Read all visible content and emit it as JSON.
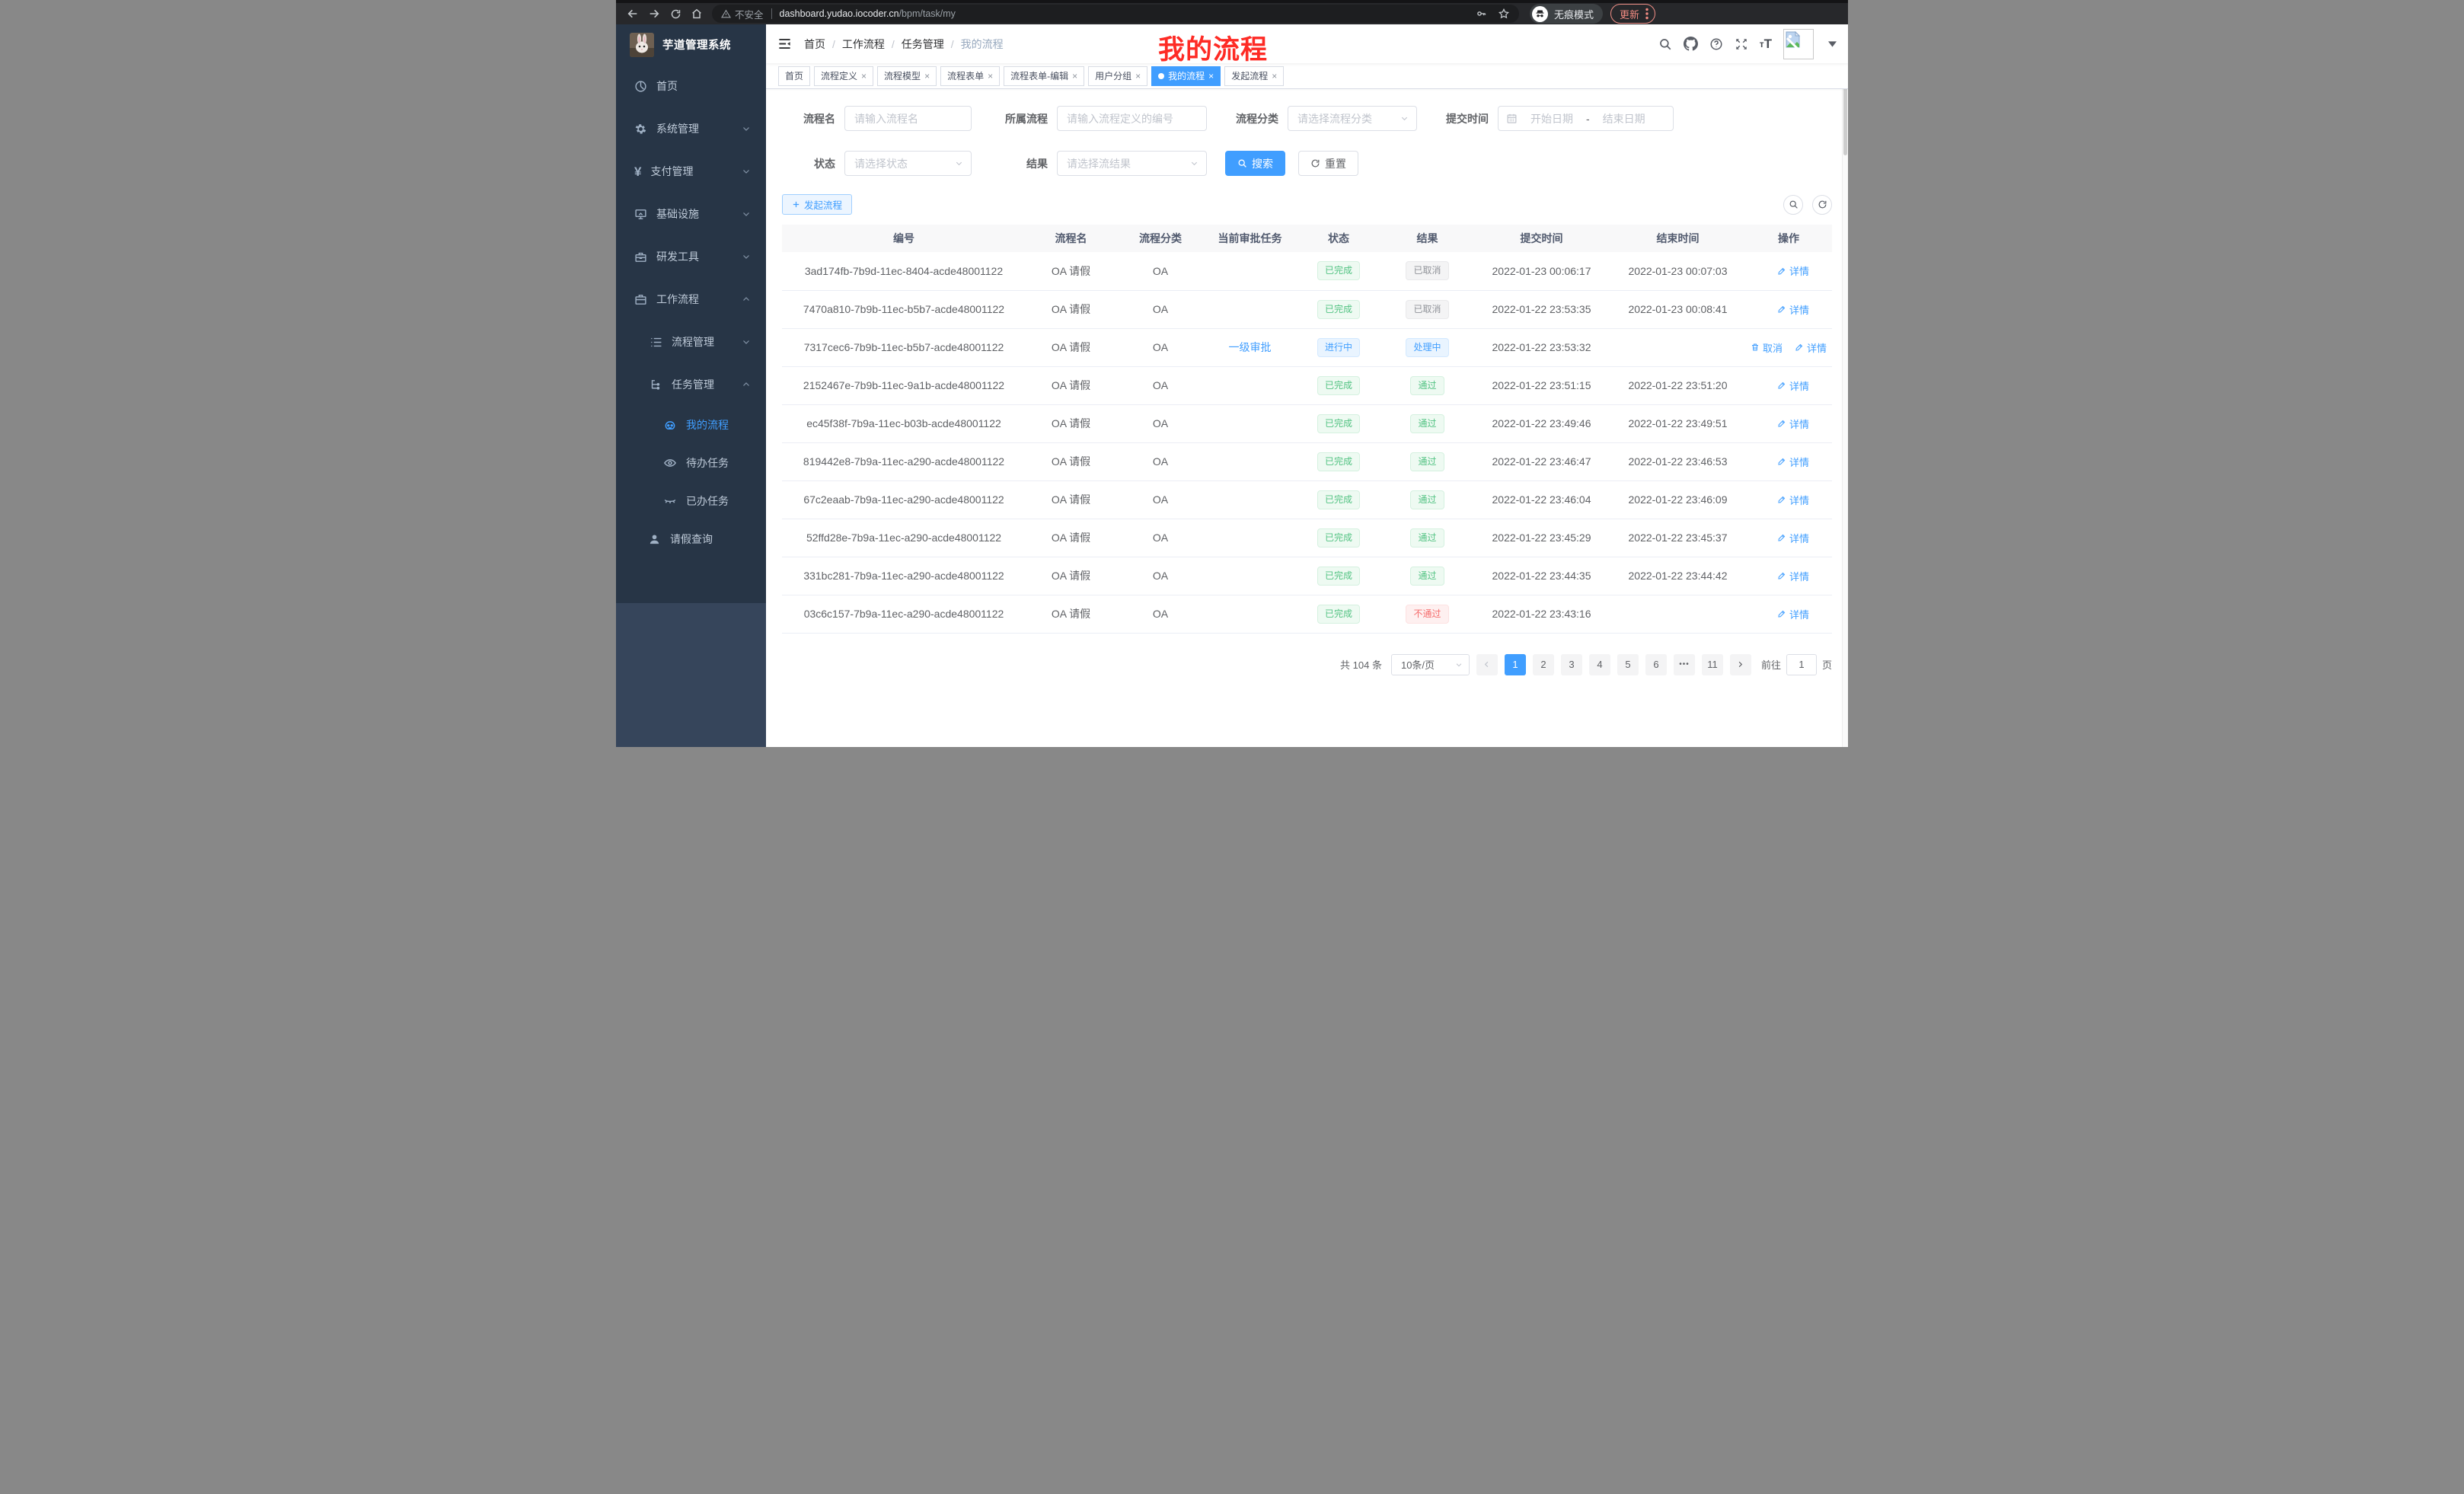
{
  "browser": {
    "security_label": "不安全",
    "url_host": "dashboard.yudao.iocoder.cn",
    "url_path": "/bpm/task/my",
    "incognito_label": "无痕模式",
    "update_label": "更新"
  },
  "sidebar": {
    "title": "芋道管理系统",
    "items": [
      {
        "label": "首页"
      },
      {
        "label": "系统管理"
      },
      {
        "label": "支付管理"
      },
      {
        "label": "基础设施"
      },
      {
        "label": "研发工具"
      },
      {
        "label": "工作流程"
      },
      {
        "label": "流程管理"
      },
      {
        "label": "任务管理"
      },
      {
        "label": "我的流程"
      },
      {
        "label": "待办任务"
      },
      {
        "label": "已办任务"
      },
      {
        "label": "请假查询"
      }
    ]
  },
  "header": {
    "breadcrumb": [
      "首页",
      "工作流程",
      "任务管理",
      "我的流程"
    ],
    "separator": "/"
  },
  "annotation": {
    "text": "我的流程",
    "color": "#fe2b25"
  },
  "tabs_ui": {
    "close_glyph": "×"
  },
  "tabs": [
    {
      "label": "首页"
    },
    {
      "label": "流程定义"
    },
    {
      "label": "流程模型"
    },
    {
      "label": "流程表单"
    },
    {
      "label": "流程表单-编辑"
    },
    {
      "label": "用户分组"
    },
    {
      "label": "我的流程"
    },
    {
      "label": "发起流程"
    }
  ],
  "filter": {
    "name_label": "流程名",
    "name_placeholder": "请输入流程名",
    "definition_label": "所属流程",
    "definition_placeholder": "请输入流程定义的编号",
    "category_label": "流程分类",
    "category_placeholder": "请选择流程分类",
    "time_label": "提交时间",
    "start_placeholder": "开始日期",
    "range_separator": "-",
    "end_placeholder": "结束日期",
    "status_label": "状态",
    "status_placeholder": "请选择状态",
    "result_label": "结果",
    "result_placeholder": "请选择流结果",
    "search_label": "搜索",
    "reset_label": "重置"
  },
  "toolbar": {
    "create_label": "发起流程"
  },
  "colors": {
    "primary": "#409eff",
    "success": "#53c383",
    "danger": "#f56c6c",
    "info": "#909399"
  },
  "table": {
    "columns": [
      "编号",
      "流程名",
      "流程分类",
      "当前审批任务",
      "状态",
      "结果",
      "提交时间",
      "结束时间",
      "操作"
    ],
    "action_labels": {
      "cancel": "取消",
      "detail": "详情"
    },
    "rows": [
      {
        "id": "3ad174fb-7b9d-11ec-8404-acde48001122",
        "name": "OA 请假",
        "category": "OA",
        "current_task": "",
        "status": "已完成",
        "status_type": "success",
        "result": "已取消",
        "result_type": "info",
        "submit_time": "2022-01-23 00:06:17",
        "end_time": "2022-01-23 00:07:03",
        "has_cancel": false
      },
      {
        "id": "7470a810-7b9b-11ec-b5b7-acde48001122",
        "name": "OA 请假",
        "category": "OA",
        "current_task": "",
        "status": "已完成",
        "status_type": "success",
        "result": "已取消",
        "result_type": "info",
        "submit_time": "2022-01-22 23:53:35",
        "end_time": "2022-01-23 00:08:41",
        "has_cancel": false
      },
      {
        "id": "7317cec6-7b9b-11ec-b5b7-acde48001122",
        "name": "OA 请假",
        "category": "OA",
        "current_task": "一级审批",
        "status": "进行中",
        "status_type": "primary",
        "result": "处理中",
        "result_type": "primary",
        "submit_time": "2022-01-22 23:53:32",
        "end_time": "",
        "has_cancel": true
      },
      {
        "id": "2152467e-7b9b-11ec-9a1b-acde48001122",
        "name": "OA 请假",
        "category": "OA",
        "current_task": "",
        "status": "已完成",
        "status_type": "success",
        "result": "通过",
        "result_type": "success",
        "submit_time": "2022-01-22 23:51:15",
        "end_time": "2022-01-22 23:51:20",
        "has_cancel": false
      },
      {
        "id": "ec45f38f-7b9a-11ec-b03b-acde48001122",
        "name": "OA 请假",
        "category": "OA",
        "current_task": "",
        "status": "已完成",
        "status_type": "success",
        "result": "通过",
        "result_type": "success",
        "submit_time": "2022-01-22 23:49:46",
        "end_time": "2022-01-22 23:49:51",
        "has_cancel": false
      },
      {
        "id": "819442e8-7b9a-11ec-a290-acde48001122",
        "name": "OA 请假",
        "category": "OA",
        "current_task": "",
        "status": "已完成",
        "status_type": "success",
        "result": "通过",
        "result_type": "success",
        "submit_time": "2022-01-22 23:46:47",
        "end_time": "2022-01-22 23:46:53",
        "has_cancel": false
      },
      {
        "id": "67c2eaab-7b9a-11ec-a290-acde48001122",
        "name": "OA 请假",
        "category": "OA",
        "current_task": "",
        "status": "已完成",
        "status_type": "success",
        "result": "通过",
        "result_type": "success",
        "submit_time": "2022-01-22 23:46:04",
        "end_time": "2022-01-22 23:46:09",
        "has_cancel": false
      },
      {
        "id": "52ffd28e-7b9a-11ec-a290-acde48001122",
        "name": "OA 请假",
        "category": "OA",
        "current_task": "",
        "status": "已完成",
        "status_type": "success",
        "result": "通过",
        "result_type": "success",
        "submit_time": "2022-01-22 23:45:29",
        "end_time": "2022-01-22 23:45:37",
        "has_cancel": false
      },
      {
        "id": "331bc281-7b9a-11ec-a290-acde48001122",
        "name": "OA 请假",
        "category": "OA",
        "current_task": "",
        "status": "已完成",
        "status_type": "success",
        "result": "通过",
        "result_type": "success",
        "submit_time": "2022-01-22 23:44:35",
        "end_time": "2022-01-22 23:44:42",
        "has_cancel": false
      },
      {
        "id": "03c6c157-7b9a-11ec-a290-acde48001122",
        "name": "OA 请假",
        "category": "OA",
        "current_task": "",
        "status": "已完成",
        "status_type": "success",
        "result": "不通过",
        "result_type": "danger",
        "submit_time": "2022-01-22 23:43:16",
        "end_time": "",
        "has_cancel": false
      }
    ]
  },
  "pagination": {
    "total_label": "共 104 条",
    "page_size": "10条/页",
    "pages": [
      "1",
      "2",
      "3",
      "4",
      "5",
      "6",
      "•••",
      "11"
    ],
    "active_index": 0,
    "goto_label": "前往",
    "goto_value": "1",
    "page_unit": "页"
  }
}
